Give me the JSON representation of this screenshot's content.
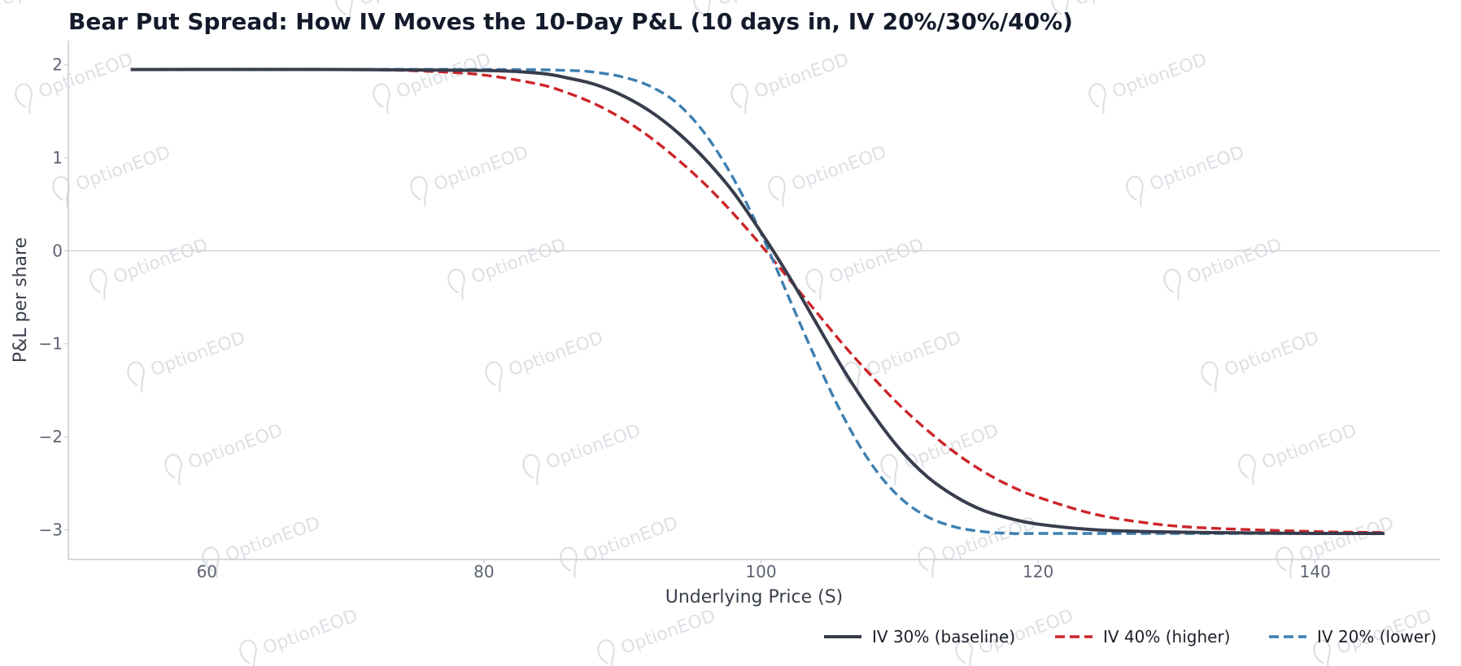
{
  "watermark": "OptionEOD",
  "chart_data": {
    "type": "line",
    "title": "Bear Put Spread: How IV Moves the 10-Day P&L (10 days in, IV 20%/30%/40%)",
    "xlabel": "Underlying Price (S)",
    "ylabel": "P&L per share",
    "xlim": [
      50,
      149
    ],
    "ylim": [
      -3.32,
      2.26
    ],
    "xticks": [
      60,
      80,
      100,
      120,
      140
    ],
    "yticks": [
      2,
      1,
      0,
      -1,
      -2,
      -3
    ],
    "ytick_labels": [
      "2",
      "1",
      "0",
      "−1",
      "−2",
      "−3"
    ],
    "zero_line": true,
    "grid": false,
    "legend_position": "bottom-right",
    "series": [
      {
        "name": "IV 30% (baseline)",
        "color": "#383d4d",
        "dash": "solid",
        "x": [
          54.5,
          70,
          80,
          84,
          86,
          88,
          90,
          92,
          94,
          96,
          98,
          100,
          102,
          104,
          106,
          108,
          110,
          112,
          114,
          116,
          118,
          120,
          124,
          128,
          132,
          140,
          145
        ],
        "y": [
          1.95,
          1.95,
          1.94,
          1.91,
          1.86,
          1.79,
          1.67,
          1.5,
          1.27,
          0.98,
          0.63,
          0.2,
          -0.27,
          -0.78,
          -1.29,
          -1.74,
          -2.13,
          -2.43,
          -2.64,
          -2.79,
          -2.88,
          -2.94,
          -3.0,
          -3.02,
          -3.03,
          -3.04,
          -3.04
        ]
      },
      {
        "name": "IV 40% (higher)",
        "color": "#cc2529",
        "dash": "dashed",
        "x": [
          54.5,
          70,
          76,
          80,
          84,
          86,
          88,
          90,
          92,
          94,
          96,
          98,
          100,
          102,
          104,
          106,
          108,
          110,
          112,
          114,
          116,
          118,
          120,
          124,
          128,
          132,
          140,
          145
        ],
        "y": [
          1.95,
          1.95,
          1.93,
          1.89,
          1.79,
          1.7,
          1.58,
          1.42,
          1.22,
          0.98,
          0.71,
          0.4,
          0.06,
          -0.3,
          -0.66,
          -1.02,
          -1.35,
          -1.66,
          -1.93,
          -2.17,
          -2.37,
          -2.53,
          -2.65,
          -2.83,
          -2.93,
          -2.98,
          -3.02,
          -3.03
        ]
      },
      {
        "name": "IV 20% (lower)",
        "color": "#3c7fb1",
        "dash": "dashed",
        "x": [
          54.5,
          80,
          86,
          88,
          90,
          92,
          94,
          96,
          98,
          100,
          102,
          104,
          106,
          108,
          110,
          112,
          114,
          116,
          118,
          120,
          124,
          128,
          140,
          145
        ],
        "y": [
          1.95,
          1.95,
          1.94,
          1.92,
          1.87,
          1.77,
          1.58,
          1.25,
          0.78,
          0.19,
          -0.5,
          -1.18,
          -1.8,
          -2.3,
          -2.65,
          -2.86,
          -2.97,
          -3.02,
          -3.04,
          -3.04,
          -3.04,
          -3.04,
          -3.04,
          -3.04
        ]
      }
    ]
  }
}
